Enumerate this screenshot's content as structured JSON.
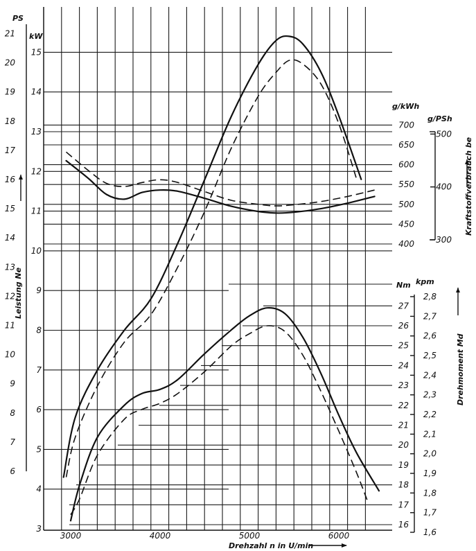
{
  "chart_data": {
    "type": "line",
    "x": {
      "label": "Drehzahl n in U/min",
      "ticks": [
        "3000",
        "4000",
        "5000",
        "6000"
      ],
      "range": [
        2900,
        6600
      ]
    },
    "axes": {
      "ps": {
        "unit": "PS",
        "label": "Leistung Ne",
        "ticks": [
          "21",
          "20",
          "19",
          "18",
          "17",
          "16",
          "15",
          "14",
          "13",
          "12",
          "11",
          "10",
          "9",
          "8",
          "7",
          "6"
        ],
        "range": [
          6,
          21
        ]
      },
      "kw": {
        "unit": "kW",
        "ticks": [
          "15",
          "14",
          "13",
          "12",
          "11",
          "10",
          "9",
          "8",
          "7",
          "6",
          "5",
          "4",
          "3"
        ],
        "range": [
          3,
          15
        ]
      },
      "gkwh": {
        "unit": "g/kWh",
        "ticks": [
          "700",
          "650",
          "600",
          "550",
          "500",
          "450",
          "400"
        ],
        "range": [
          400,
          700
        ]
      },
      "gpsh": {
        "unit": "g/PSh",
        "label": "Kraftstoffverbrauch be",
        "ticks": [
          "500",
          "400",
          "300"
        ],
        "range": [
          300,
          500
        ]
      },
      "nm": {
        "unit": "Nm",
        "ticks": [
          "27",
          "26",
          "25",
          "24",
          "23",
          "22",
          "21",
          "20",
          "19",
          "18",
          "17",
          "16"
        ],
        "range": [
          16,
          27
        ]
      },
      "kpm": {
        "unit": "kpm",
        "label": "Drehmoment Md",
        "ticks": [
          "2,8",
          "2,7",
          "2,6",
          "2,5",
          "2,4",
          "2,3",
          "2,2",
          "2,1",
          "2,0",
          "1,9",
          "1,8",
          "1,7",
          "1,6"
        ],
        "range": [
          1.6,
          2.8
        ]
      }
    },
    "series": [
      {
        "style": "solid",
        "axis": "kw",
        "x": [
          2920,
          3050,
          3300,
          3600,
          3900,
          4200,
          4500,
          4800,
          5100,
          5300,
          5450,
          5600,
          5800,
          6000,
          6250
        ],
        "y": [
          4.3,
          5.8,
          7.0,
          8.0,
          8.8,
          10.2,
          11.8,
          13.4,
          14.7,
          15.3,
          15.4,
          15.2,
          14.5,
          13.4,
          11.8
        ]
      },
      {
        "style": "dashed",
        "axis": "kw",
        "x": [
          2950,
          3050,
          3300,
          3600,
          3900,
          4200,
          4500,
          4800,
          5100,
          5300,
          5450,
          5600,
          5800,
          6000,
          6200
        ],
        "y": [
          4.3,
          5.3,
          6.6,
          7.7,
          8.4,
          9.6,
          11.0,
          12.6,
          13.9,
          14.5,
          14.8,
          14.7,
          14.2,
          13.2,
          11.8
        ]
      },
      {
        "style": "solid",
        "axis": "gkwh",
        "x": [
          2950,
          3200,
          3400,
          3600,
          3800,
          4000,
          4200,
          4500,
          4800,
          5100,
          5300,
          5500,
          5800,
          6100,
          6400
        ],
        "y": [
          610,
          565,
          525,
          513,
          530,
          536,
          533,
          515,
          495,
          482,
          478,
          480,
          489,
          503,
          520
        ]
      },
      {
        "style": "dashed",
        "axis": "gkwh",
        "x": [
          2950,
          3200,
          3400,
          3600,
          3800,
          4000,
          4200,
          4500,
          4800,
          5100,
          5300,
          5500,
          5800,
          6100,
          6400
        ],
        "y": [
          632,
          585,
          553,
          545,
          555,
          562,
          555,
          532,
          510,
          500,
          496,
          499,
          507,
          520,
          536
        ]
      },
      {
        "style": "solid",
        "axis": "nm",
        "x": [
          3000,
          3100,
          3300,
          3600,
          3800,
          4000,
          4200,
          4500,
          4800,
          5000,
          5200,
          5400,
          5600,
          5800,
          6000,
          6200,
          6450
        ],
        "y": [
          16.2,
          18.0,
          20.4,
          22.0,
          22.6,
          22.8,
          23.3,
          24.6,
          25.8,
          26.5,
          26.9,
          26.6,
          25.4,
          23.6,
          21.5,
          19.6,
          17.7
        ]
      },
      {
        "style": "dashed",
        "axis": "nm",
        "x": [
          3000,
          3100,
          3300,
          3600,
          3800,
          4000,
          4200,
          4500,
          4800,
          5000,
          5200,
          5400,
          5600,
          5800,
          6000,
          6200,
          6320
        ],
        "y": [
          16.5,
          17.3,
          19.5,
          21.3,
          21.8,
          22.1,
          22.6,
          23.7,
          25.0,
          25.6,
          26.0,
          25.7,
          24.5,
          22.7,
          20.7,
          18.6,
          17.2
        ]
      }
    ]
  }
}
